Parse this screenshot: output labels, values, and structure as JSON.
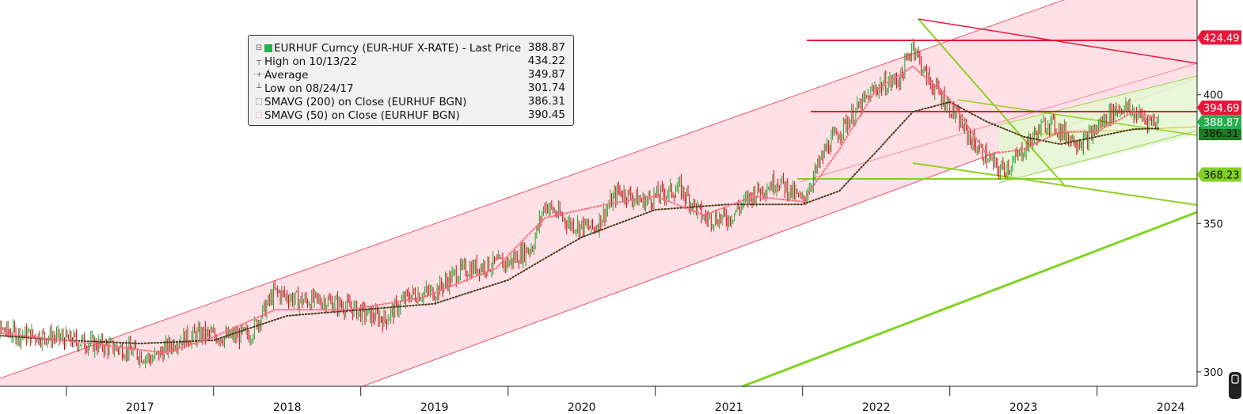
{
  "legend": {
    "title": "EURHUF Curncy (EUR-HUF X-RATE) - Last Price",
    "last_price": "388.87",
    "rows": [
      {
        "label": "High on 10/13/22",
        "value": "434.22"
      },
      {
        "label": "Average",
        "value": "349.87"
      },
      {
        "label": "Low on 08/24/17",
        "value": "301.74"
      },
      {
        "label": "SMAVG (200)  on Close (EURHUF BGN)",
        "value": "386.31"
      },
      {
        "label": "SMAVG (50)  on Close (EURHUF BGN)",
        "value": "390.45"
      }
    ]
  },
  "chart_data": {
    "type": "line",
    "title": "",
    "xlabel": "",
    "ylabel": "",
    "x_tick_labels": [
      "2017",
      "2018",
      "2019",
      "2020",
      "2021",
      "2022",
      "2023",
      "2024"
    ],
    "y_tick_labels": [
      "300",
      "350",
      "400"
    ],
    "ylim": [
      298,
      445
    ],
    "y_log_scale": true,
    "grid": false,
    "legend_position": "top-left",
    "series": [
      {
        "name": "EURHUF Curncy (EUR-HUF X-RATE) - Last Price",
        "render": "candlestick",
        "color_up": "#22a52c",
        "color_down": "#e0001b",
        "points": [
          [
            "2016-06",
            315
          ],
          [
            "2016-09",
            312
          ],
          [
            "2016-12",
            311
          ],
          [
            "2017-03",
            309
          ],
          [
            "2017-06",
            307
          ],
          [
            "2017-08",
            304
          ],
          [
            "2017-10",
            310
          ],
          [
            "2017-12",
            312
          ],
          [
            "2018-02",
            311
          ],
          [
            "2018-04",
            312
          ],
          [
            "2018-06",
            326
          ],
          [
            "2018-08",
            323
          ],
          [
            "2018-10",
            323
          ],
          [
            "2018-12",
            321
          ],
          [
            "2019-01",
            319
          ],
          [
            "2019-03",
            317
          ],
          [
            "2019-05",
            325
          ],
          [
            "2019-07",
            326
          ],
          [
            "2019-09",
            333
          ],
          [
            "2019-11",
            335
          ],
          [
            "2020-01",
            336
          ],
          [
            "2020-03",
            342
          ],
          [
            "2020-04",
            357
          ],
          [
            "2020-06",
            350
          ],
          [
            "2020-08",
            348
          ],
          [
            "2020-10",
            362
          ],
          [
            "2020-12",
            358
          ],
          [
            "2021-01",
            360
          ],
          [
            "2021-03",
            363
          ],
          [
            "2021-05",
            352
          ],
          [
            "2021-07",
            352
          ],
          [
            "2021-09",
            361
          ],
          [
            "2021-11",
            366
          ],
          [
            "2022-01",
            358
          ],
          [
            "2022-03",
            379
          ],
          [
            "2022-05",
            391
          ],
          [
            "2022-07",
            403
          ],
          [
            "2022-09",
            407
          ],
          [
            "2022-10",
            422
          ],
          [
            "2022-11",
            408
          ],
          [
            "2023-01",
            395
          ],
          [
            "2023-03",
            380
          ],
          [
            "2023-05",
            370
          ],
          [
            "2023-06",
            372
          ],
          [
            "2023-08",
            384
          ],
          [
            "2023-09",
            389
          ],
          [
            "2023-11",
            382
          ],
          [
            "2023-12",
            381
          ],
          [
            "2024-02",
            392
          ],
          [
            "2024-03",
            395
          ],
          [
            "2024-05",
            390
          ],
          [
            "2024-06",
            388.87
          ]
        ]
      },
      {
        "name": "SMAVG (200)  on Close (EURHUF BGN)",
        "color": "#4a3a1a",
        "dash": "dotted",
        "points": [
          [
            "2016-06",
            312
          ],
          [
            "2017-01",
            310
          ],
          [
            "2017-07",
            309
          ],
          [
            "2018-01",
            310
          ],
          [
            "2018-07",
            318
          ],
          [
            "2019-01",
            320
          ],
          [
            "2019-07",
            322
          ],
          [
            "2020-01",
            330
          ],
          [
            "2020-07",
            345
          ],
          [
            "2021-01",
            355
          ],
          [
            "2021-07",
            357
          ],
          [
            "2022-01",
            357
          ],
          [
            "2022-04",
            362
          ],
          [
            "2022-07",
            377
          ],
          [
            "2022-10",
            393
          ],
          [
            "2023-01",
            397
          ],
          [
            "2023-04",
            389
          ],
          [
            "2023-07",
            383
          ],
          [
            "2023-10",
            380
          ],
          [
            "2024-01",
            383
          ],
          [
            "2024-04",
            386
          ],
          [
            "2024-06",
            386.31
          ]
        ]
      },
      {
        "name": "SMAVG (50)  on Close (EURHUF BGN)",
        "color": "#ff6a80",
        "dash": "dotted",
        "points": [
          [
            "2016-06",
            313
          ],
          [
            "2017-03",
            309
          ],
          [
            "2017-09",
            306
          ],
          [
            "2018-01",
            311
          ],
          [
            "2018-06",
            320
          ],
          [
            "2018-12",
            320
          ],
          [
            "2019-06",
            324
          ],
          [
            "2019-12",
            334
          ],
          [
            "2020-04",
            352
          ],
          [
            "2020-09",
            357
          ],
          [
            "2021-01",
            360
          ],
          [
            "2021-05",
            353
          ],
          [
            "2021-09",
            360
          ],
          [
            "2022-01",
            358
          ],
          [
            "2022-04",
            378
          ],
          [
            "2022-07",
            402
          ],
          [
            "2022-10",
            412
          ],
          [
            "2023-01",
            398
          ],
          [
            "2023-04",
            376
          ],
          [
            "2023-07",
            378
          ],
          [
            "2023-10",
            385
          ],
          [
            "2024-01",
            385
          ],
          [
            "2024-04",
            393
          ],
          [
            "2024-06",
            390.45
          ]
        ]
      }
    ],
    "horizontal_levels": [
      {
        "value": 424.49,
        "label": "424.49",
        "color": "#e8173a"
      },
      {
        "value": 394.69,
        "label": "394.69",
        "color": "#e8173a"
      },
      {
        "value": 388.87,
        "label": "388.87",
        "color": "#22b14c"
      },
      {
        "value": 368.23,
        "label": "368.23",
        "color": "#7fd320"
      }
    ],
    "hidden_badge_value": "386.31"
  }
}
